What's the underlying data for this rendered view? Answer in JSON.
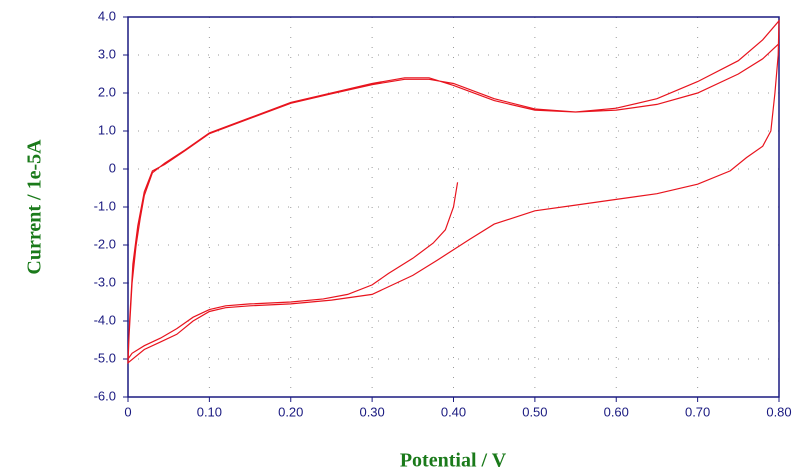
{
  "chart_data": {
    "type": "line",
    "x_label": "Potential / V",
    "y_label": "Current / 1e-5A",
    "xlim": [
      0,
      0.8
    ],
    "ylim": [
      -6,
      4
    ],
    "xticks": [
      0,
      {
        "value": 0.1,
        "label": "0.10"
      },
      {
        "value": 0.2,
        "label": "0.20"
      },
      {
        "value": 0.3,
        "label": "0.30"
      },
      {
        "value": 0.4,
        "label": "0.40"
      },
      {
        "value": 0.5,
        "label": "0.50"
      },
      {
        "value": 0.6,
        "label": "0.60"
      },
      {
        "value": 0.7,
        "label": "0.70"
      },
      {
        "value": 0.8,
        "label": "0.80"
      }
    ],
    "yticks": [
      {
        "value": -6,
        "label": "-6.0"
      },
      {
        "value": -5,
        "label": "-5.0"
      },
      {
        "value": -4,
        "label": "-4.0"
      },
      {
        "value": -3,
        "label": "-3.0"
      },
      {
        "value": -2,
        "label": "-2.0"
      },
      {
        "value": -1,
        "label": "-1.0"
      },
      0,
      {
        "value": 1,
        "label": "1.0"
      },
      {
        "value": 2,
        "label": "2.0"
      },
      {
        "value": 3,
        "label": "3.0"
      },
      {
        "value": 4,
        "label": "4.0"
      }
    ],
    "grid": true,
    "series": [
      {
        "color": "#e8141e",
        "x": [
          0.405,
          0.4,
          0.39,
          0.375,
          0.35,
          0.32,
          0.3,
          0.27,
          0.24,
          0.2,
          0.15,
          0.12,
          0.1,
          0.08,
          0.06,
          0.04,
          0.02,
          0.005,
          0,
          0.001,
          0.005,
          0.01,
          0.015,
          0.02,
          0.03,
          0.045,
          0.07,
          0.1,
          0.15,
          0.2,
          0.25,
          0.3,
          0.34,
          0.37,
          0.4,
          0.45,
          0.5,
          0.55,
          0.6,
          0.65,
          0.7,
          0.75,
          0.78,
          0.8,
          0.799,
          0.795,
          0.79,
          0.78,
          0.76,
          0.74,
          0.7,
          0.65,
          0.6,
          0.55,
          0.5,
          0.45,
          0.42,
          0.38,
          0.35,
          0.3,
          0.25,
          0.2,
          0.15,
          0.12,
          0.1,
          0.08,
          0.06,
          0.04,
          0.02,
          0,
          0.002,
          0.006,
          0.012,
          0.02,
          0.03,
          0.045,
          0.07,
          0.1,
          0.15,
          0.2,
          0.25,
          0.3,
          0.34,
          0.37,
          0.4,
          0.45,
          0.5,
          0.55,
          0.6,
          0.65,
          0.7,
          0.75,
          0.78,
          0.8
        ],
        "values": [
          -0.35,
          -1.0,
          -1.6,
          -1.95,
          -2.35,
          -2.75,
          -3.05,
          -3.3,
          -3.42,
          -3.5,
          -3.55,
          -3.6,
          -3.7,
          -3.9,
          -4.2,
          -4.45,
          -4.65,
          -4.85,
          -5.0,
          -4.5,
          -3.0,
          -2.0,
          -1.3,
          -0.7,
          -0.1,
          0.15,
          0.5,
          0.95,
          1.35,
          1.75,
          2.0,
          2.25,
          2.4,
          2.4,
          2.2,
          1.8,
          1.55,
          1.5,
          1.6,
          1.85,
          2.3,
          2.85,
          3.4,
          3.9,
          3.0,
          2.0,
          1.0,
          0.6,
          0.3,
          -0.05,
          -0.4,
          -0.65,
          -0.8,
          -0.95,
          -1.1,
          -1.45,
          -1.85,
          -2.4,
          -2.8,
          -3.3,
          -3.45,
          -3.55,
          -3.6,
          -3.65,
          -3.75,
          -4.0,
          -4.35,
          -4.55,
          -4.75,
          -5.1,
          -4.0,
          -2.5,
          -1.5,
          -0.6,
          -0.05,
          0.12,
          0.48,
          0.93,
          1.33,
          1.73,
          1.98,
          2.22,
          2.36,
          2.36,
          2.25,
          1.85,
          1.58,
          1.5,
          1.55,
          1.7,
          2.0,
          2.5,
          2.9,
          3.3
        ]
      }
    ]
  }
}
